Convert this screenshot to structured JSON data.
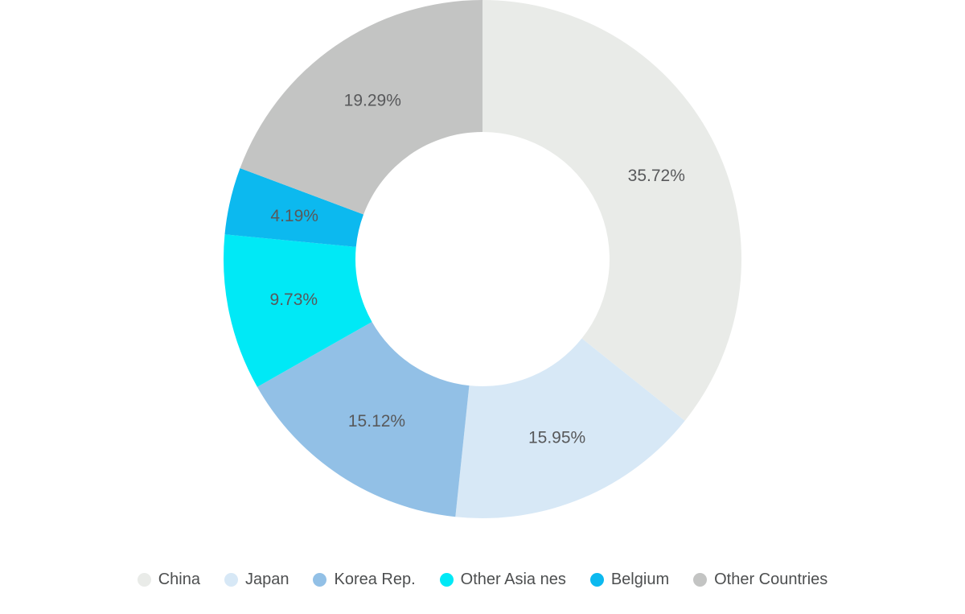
{
  "chart_data": {
    "type": "pie",
    "subtype": "donut",
    "title": "",
    "categories": [
      "China",
      "Japan",
      "Korea Rep.",
      "Other Asia nes",
      "Belgium",
      "Other Countries"
    ],
    "values": [
      35.72,
      15.95,
      15.12,
      9.73,
      4.19,
      19.29
    ],
    "value_labels": [
      "35.72%",
      "15.95%",
      "15.12%",
      "9.73%",
      "4.19%",
      "19.29%"
    ],
    "colors": [
      "#e9ebe8",
      "#d7e8f6",
      "#92c0e6",
      "#00e9f6",
      "#0cb9ef",
      "#c3c4c3"
    ],
    "unit": "%",
    "start_angle_deg": 0,
    "direction": "clockwise",
    "donut_hole_ratio": 0.49,
    "label_position": "inside",
    "label_color": "#58595b",
    "legend_position": "bottom",
    "legend_text_color": "#4d4f50",
    "background_color": "#ffffff"
  }
}
